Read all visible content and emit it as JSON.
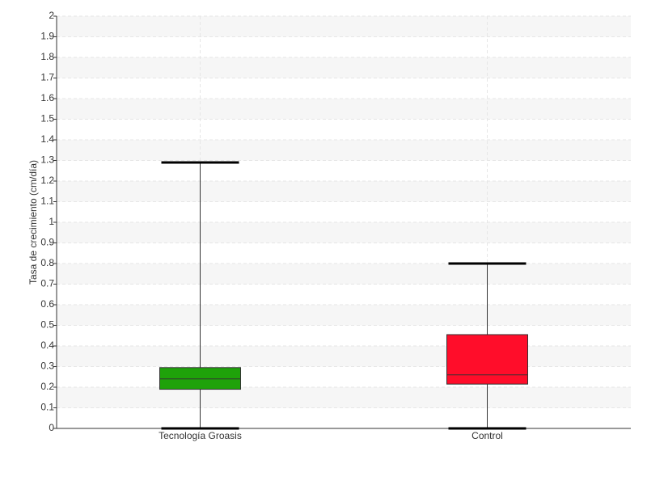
{
  "chart_data": {
    "type": "box",
    "y_label": "Tasa de crecimiento (cm/día)",
    "categories": [
      "Tecnología Groasis",
      "Control"
    ],
    "boxes": [
      {
        "min": 0,
        "q1": 0.19,
        "median": 0.24,
        "q3": 0.295,
        "max": 1.29,
        "color": "#1fa20a"
      },
      {
        "min": 0,
        "q1": 0.215,
        "median": 0.26,
        "q3": 0.455,
        "max": 0.8,
        "color": "#ff0d2a"
      }
    ],
    "ylim": [
      0,
      2
    ],
    "yticks": [
      0,
      0.1,
      0.2,
      0.3,
      0.4,
      0.5,
      0.6,
      0.7,
      0.8,
      0.9,
      1,
      1.1,
      1.2,
      1.3,
      1.4,
      1.5,
      1.6,
      1.7,
      1.8,
      1.9,
      2
    ],
    "grid": true
  }
}
